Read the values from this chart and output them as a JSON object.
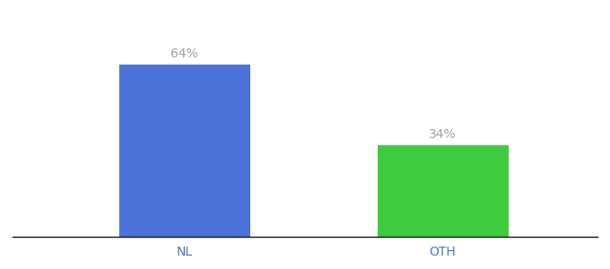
{
  "categories": [
    "NL",
    "OTH"
  ],
  "values": [
    64,
    34
  ],
  "bar_colors": [
    "#4a72d9",
    "#3ecb3e"
  ],
  "label_texts": [
    "64%",
    "34%"
  ],
  "label_color": "#a0a0a0",
  "label_fontsize": 10,
  "tick_label_color": "#4a72d9",
  "tick_fontsize": 10,
  "background_color": "#ffffff",
  "ylim": [
    0,
    80
  ],
  "xlim": [
    -0.1,
    1.6
  ],
  "bar_positions": [
    0.4,
    1.15
  ],
  "bar_width": 0.38,
  "figsize": [
    6.8,
    3.0
  ],
  "dpi": 100,
  "spine_color": "#111111"
}
